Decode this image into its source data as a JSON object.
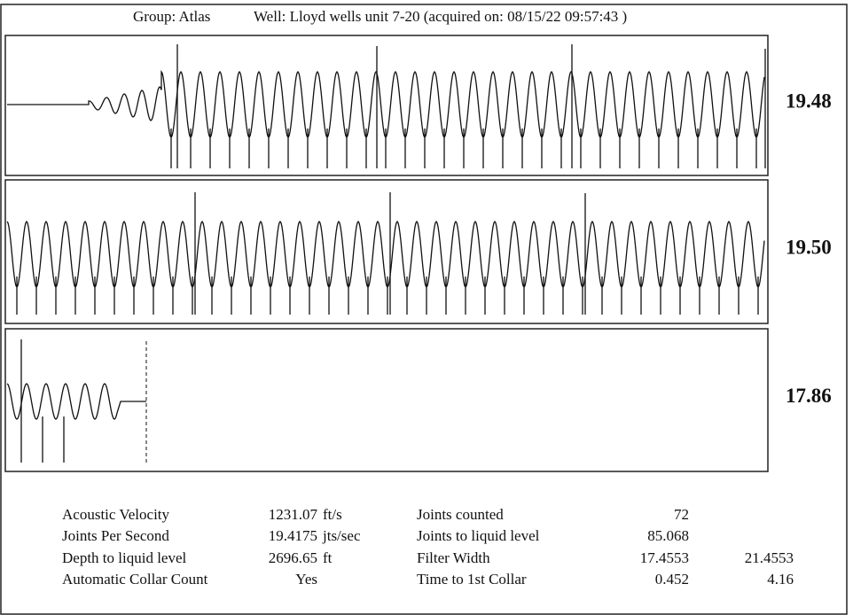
{
  "header": {
    "group": "Group: Atlas",
    "well": "Well: Lloyd wells unit 7-20 (acquired on: 08/15/22 09:57:43 )"
  },
  "panels": [
    {
      "label": "19.48"
    },
    {
      "label": "19.50"
    },
    {
      "label": "17.86"
    }
  ],
  "table": {
    "left": [
      [
        "Acoustic Velocity",
        "1231.07",
        "ft/s"
      ],
      [
        "Joints Per Second",
        "19.4175",
        "jts/sec"
      ],
      [
        "Depth to liquid level",
        "2696.65",
        "ft"
      ],
      [
        "Automatic Collar Count",
        "Yes"
      ]
    ],
    "right": [
      [
        "Joints counted",
        "72"
      ],
      [
        "Joints to liquid level",
        "85.068"
      ],
      [
        "Filter Width",
        "17.4553",
        "21.4553"
      ],
      [
        "Time to 1st Collar",
        "0.452",
        "4.16"
      ]
    ]
  }
}
